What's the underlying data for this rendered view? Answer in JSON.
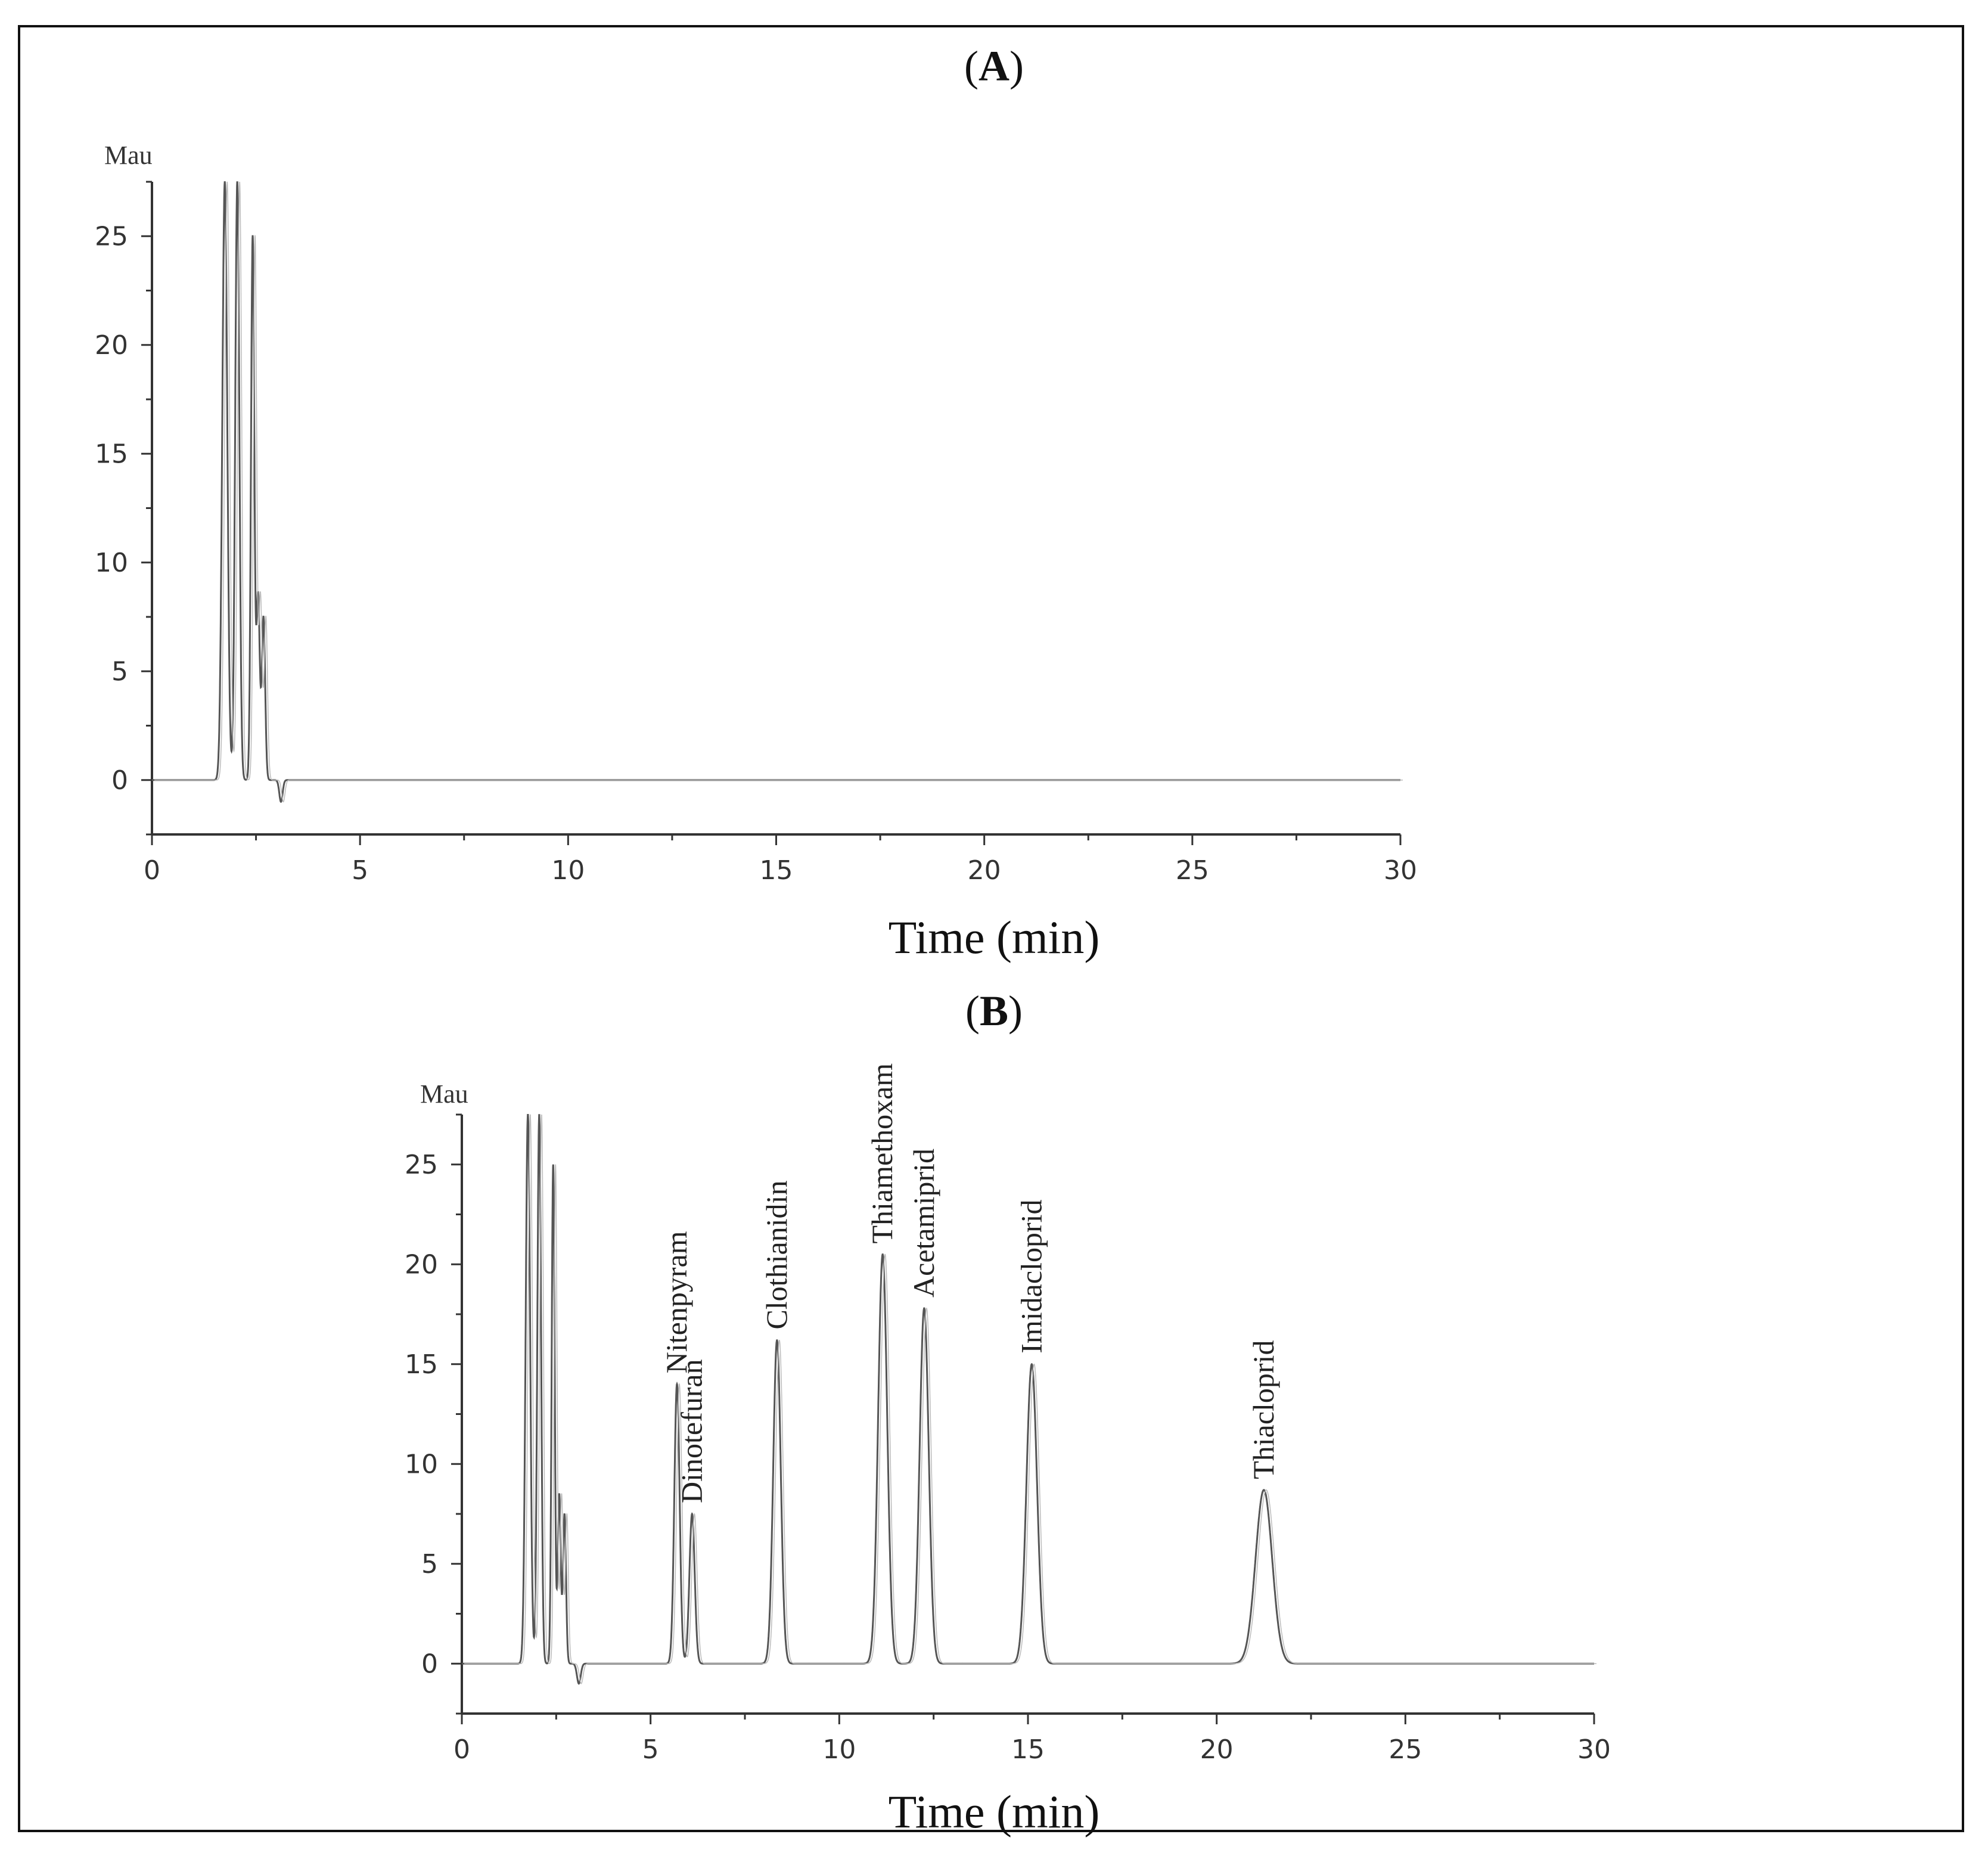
{
  "chart_data": [
    {
      "type": "line",
      "panel": "(A)",
      "panel_letter": "A",
      "title": "",
      "xlabel": "Time (min)",
      "ylabel": "Mau",
      "xlim": [
        0,
        30
      ],
      "ylim": [
        -2.5,
        27.5
      ],
      "xticks": [
        0,
        5,
        10,
        15,
        20,
        25,
        30
      ],
      "yticks": [
        0,
        5,
        10,
        15,
        20,
        25
      ],
      "grid": false,
      "solvent_peaks": [
        {
          "x": 1.75,
          "y": 27.5,
          "w": 0.06
        },
        {
          "x": 2.05,
          "y": 27.5,
          "w": 0.05
        },
        {
          "x": 2.42,
          "y": 25.0,
          "w": 0.04
        },
        {
          "x": 2.55,
          "y": 8.5,
          "w": 0.04
        },
        {
          "x": 2.68,
          "y": 7.5,
          "w": 0.04
        }
      ],
      "dips": [
        {
          "x": 3.1,
          "y": -1.0,
          "w": 0.04
        }
      ],
      "peaks": []
    },
    {
      "type": "line",
      "panel": "(B)",
      "panel_letter": "B",
      "title": "",
      "xlabel": "Time (min)",
      "ylabel": "Mau",
      "xlim": [
        0,
        30
      ],
      "ylim": [
        -2.5,
        27.5
      ],
      "xticks": [
        0,
        5,
        10,
        15,
        20,
        25,
        30
      ],
      "yticks": [
        0,
        5,
        10,
        15,
        20,
        25
      ],
      "grid": false,
      "solvent_peaks": [
        {
          "x": 1.75,
          "y": 27.5,
          "w": 0.06
        },
        {
          "x": 2.05,
          "y": 27.5,
          "w": 0.05
        },
        {
          "x": 2.42,
          "y": 25.0,
          "w": 0.04
        },
        {
          "x": 2.58,
          "y": 8.5,
          "w": 0.04
        },
        {
          "x": 2.72,
          "y": 7.5,
          "w": 0.04
        }
      ],
      "dips": [
        {
          "x": 3.1,
          "y": -1.0,
          "w": 0.05
        }
      ],
      "peaks": [
        {
          "name": "Nitenpyram",
          "x": 5.7,
          "y": 14.0,
          "w": 0.07
        },
        {
          "name": "Dinotefuran",
          "x": 6.1,
          "y": 7.5,
          "w": 0.07
        },
        {
          "name": "Clothianidin",
          "x": 8.35,
          "y": 16.2,
          "w": 0.1
        },
        {
          "name": "Thiamethoxam",
          "x": 11.15,
          "y": 20.5,
          "w": 0.12
        },
        {
          "name": "Acetamiprid",
          "x": 12.25,
          "y": 17.8,
          "w": 0.12
        },
        {
          "name": "Imidacloprid",
          "x": 15.1,
          "y": 15.0,
          "w": 0.14
        },
        {
          "name": "Thiacloprid",
          "x": 21.25,
          "y": 8.7,
          "w": 0.22
        }
      ]
    }
  ]
}
